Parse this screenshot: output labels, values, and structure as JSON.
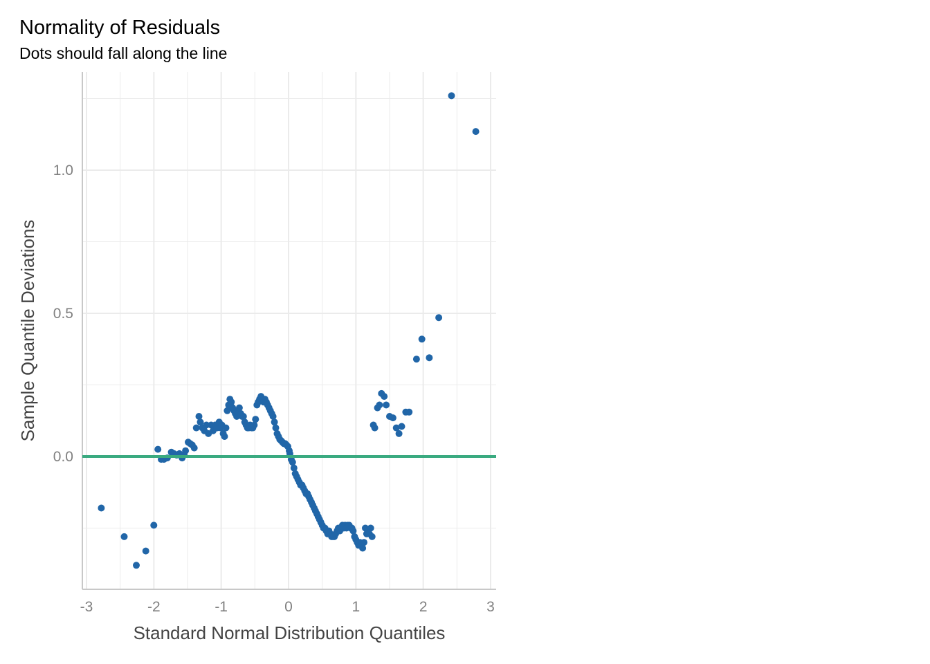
{
  "title": "Normality of Residuals",
  "subtitle": "Dots should fall along the line",
  "colors": {
    "point": "#2166a8",
    "reference_line": "#3aaa80",
    "grid": "#ebebeb",
    "axis": "#c8c8c8"
  },
  "chart_data": {
    "type": "scatter",
    "xlabel": "Standard Normal Distribution Quantiles",
    "ylabel": "Sample Quantile Deviations",
    "xlim": [
      -3,
      3
    ],
    "ylim": [
      -0.45,
      1.3
    ],
    "x_ticks": [
      -3,
      -2,
      -1,
      0,
      1,
      2,
      3
    ],
    "x_tick_labels": [
      "-3",
      "-2",
      "-1",
      "0",
      "1",
      "2",
      "3"
    ],
    "y_ticks": [
      0.0,
      0.5,
      1.0
    ],
    "y_tick_labels": [
      "0.0",
      "0.5",
      "1.0"
    ],
    "reference_line_y": 0,
    "grid": true,
    "points": [
      [
        -2.78,
        -0.18
      ],
      [
        -2.44,
        -0.28
      ],
      [
        -2.26,
        -0.38
      ],
      [
        -2.12,
        -0.33
      ],
      [
        -2.0,
        -0.24
      ],
      [
        -1.94,
        0.025
      ],
      [
        -1.89,
        -0.01
      ],
      [
        -1.85,
        -0.01
      ],
      [
        -1.8,
        -0.005
      ],
      [
        -1.74,
        0.015
      ],
      [
        -1.7,
        0.01
      ],
      [
        -1.66,
        0.005
      ],
      [
        -1.62,
        0.01
      ],
      [
        -1.58,
        -0.005
      ],
      [
        -1.55,
        0.005
      ],
      [
        -1.53,
        0.02
      ],
      [
        -1.49,
        0.05
      ],
      [
        -1.46,
        0.045
      ],
      [
        -1.43,
        0.04
      ],
      [
        -1.4,
        0.03
      ],
      [
        -1.37,
        0.1
      ],
      [
        -1.33,
        0.14
      ],
      [
        -1.31,
        0.12
      ],
      [
        -1.28,
        0.1
      ],
      [
        -1.25,
        0.09
      ],
      [
        -1.22,
        0.11
      ],
      [
        -1.19,
        0.08
      ],
      [
        -1.15,
        0.11
      ],
      [
        -1.12,
        0.09
      ],
      [
        -1.09,
        0.11
      ],
      [
        -1.06,
        0.1
      ],
      [
        -1.03,
        0.12
      ],
      [
        -1.01,
        0.1
      ],
      [
        -0.99,
        0.11
      ],
      [
        -0.97,
        0.08
      ],
      [
        -0.95,
        0.07
      ],
      [
        -0.93,
        0.1
      ],
      [
        -0.91,
        0.16
      ],
      [
        -0.89,
        0.18
      ],
      [
        -0.87,
        0.2
      ],
      [
        -0.85,
        0.19
      ],
      [
        -0.83,
        0.17
      ],
      [
        -0.81,
        0.16
      ],
      [
        -0.79,
        0.15
      ],
      [
        -0.77,
        0.14
      ],
      [
        -0.75,
        0.15
      ],
      [
        -0.73,
        0.17
      ],
      [
        -0.71,
        0.15
      ],
      [
        -0.69,
        0.14
      ],
      [
        -0.67,
        0.14
      ],
      [
        -0.65,
        0.12
      ],
      [
        -0.63,
        0.11
      ],
      [
        -0.61,
        0.1
      ],
      [
        -0.59,
        0.1
      ],
      [
        -0.57,
        0.11
      ],
      [
        -0.55,
        0.1
      ],
      [
        -0.53,
        0.1
      ],
      [
        -0.51,
        0.11
      ],
      [
        -0.49,
        0.13
      ],
      [
        -0.47,
        0.18
      ],
      [
        -0.45,
        0.19
      ],
      [
        -0.43,
        0.2
      ],
      [
        -0.41,
        0.21
      ],
      [
        -0.39,
        0.2
      ],
      [
        -0.37,
        0.19
      ],
      [
        -0.35,
        0.2
      ],
      [
        -0.33,
        0.19
      ],
      [
        -0.31,
        0.18
      ],
      [
        -0.29,
        0.17
      ],
      [
        -0.27,
        0.16
      ],
      [
        -0.25,
        0.15
      ],
      [
        -0.23,
        0.14
      ],
      [
        -0.21,
        0.12
      ],
      [
        -0.19,
        0.1
      ],
      [
        -0.17,
        0.08
      ],
      [
        -0.15,
        0.07
      ],
      [
        -0.13,
        0.06
      ],
      [
        -0.11,
        0.055
      ],
      [
        -0.09,
        0.05
      ],
      [
        -0.07,
        0.045
      ],
      [
        -0.05,
        0.045
      ],
      [
        -0.03,
        0.04
      ],
      [
        -0.01,
        0.035
      ],
      [
        0.01,
        0.02
      ],
      [
        0.02,
        0.01
      ],
      [
        0.04,
        -0.01
      ],
      [
        0.06,
        -0.02
      ],
      [
        0.08,
        -0.04
      ],
      [
        0.1,
        -0.06
      ],
      [
        0.12,
        -0.07
      ],
      [
        0.14,
        -0.08
      ],
      [
        0.16,
        -0.09
      ],
      [
        0.18,
        -0.1
      ],
      [
        0.2,
        -0.1
      ],
      [
        0.22,
        -0.11
      ],
      [
        0.24,
        -0.12
      ],
      [
        0.26,
        -0.13
      ],
      [
        0.28,
        -0.13
      ],
      [
        0.3,
        -0.14
      ],
      [
        0.32,
        -0.15
      ],
      [
        0.34,
        -0.16
      ],
      [
        0.36,
        -0.17
      ],
      [
        0.38,
        -0.18
      ],
      [
        0.4,
        -0.19
      ],
      [
        0.42,
        -0.2
      ],
      [
        0.44,
        -0.21
      ],
      [
        0.46,
        -0.22
      ],
      [
        0.48,
        -0.23
      ],
      [
        0.5,
        -0.24
      ],
      [
        0.52,
        -0.25
      ],
      [
        0.54,
        -0.25
      ],
      [
        0.56,
        -0.26
      ],
      [
        0.58,
        -0.27
      ],
      [
        0.6,
        -0.26
      ],
      [
        0.62,
        -0.27
      ],
      [
        0.64,
        -0.28
      ],
      [
        0.66,
        -0.28
      ],
      [
        0.68,
        -0.28
      ],
      [
        0.7,
        -0.27
      ],
      [
        0.72,
        -0.26
      ],
      [
        0.74,
        -0.25
      ],
      [
        0.76,
        -0.26
      ],
      [
        0.78,
        -0.25
      ],
      [
        0.8,
        -0.24
      ],
      [
        0.82,
        -0.25
      ],
      [
        0.84,
        -0.24
      ],
      [
        0.86,
        -0.25
      ],
      [
        0.88,
        -0.24
      ],
      [
        0.9,
        -0.24
      ],
      [
        0.92,
        -0.25
      ],
      [
        0.94,
        -0.25
      ],
      [
        0.96,
        -0.26
      ],
      [
        0.98,
        -0.28
      ],
      [
        1.0,
        -0.29
      ],
      [
        1.02,
        -0.3
      ],
      [
        1.04,
        -0.31
      ],
      [
        1.06,
        -0.3
      ],
      [
        1.08,
        -0.31
      ],
      [
        1.1,
        -0.32
      ],
      [
        1.12,
        -0.3
      ],
      [
        1.14,
        -0.25
      ],
      [
        1.16,
        -0.27
      ],
      [
        1.18,
        -0.26
      ],
      [
        1.2,
        -0.27
      ],
      [
        1.22,
        -0.25
      ],
      [
        1.24,
        -0.28
      ],
      [
        1.26,
        0.11
      ],
      [
        1.28,
        0.1
      ],
      [
        1.32,
        0.17
      ],
      [
        1.35,
        0.18
      ],
      [
        1.38,
        0.22
      ],
      [
        1.42,
        0.21
      ],
      [
        1.45,
        0.18
      ],
      [
        1.5,
        0.14
      ],
      [
        1.55,
        0.135
      ],
      [
        1.6,
        0.1
      ],
      [
        1.64,
        0.08
      ],
      [
        1.68,
        0.105
      ],
      [
        1.74,
        0.155
      ],
      [
        1.79,
        0.155
      ],
      [
        1.9,
        0.34
      ],
      [
        1.98,
        0.41
      ],
      [
        2.09,
        0.345
      ],
      [
        2.23,
        0.485
      ],
      [
        2.42,
        1.26
      ],
      [
        2.78,
        1.135
      ]
    ]
  }
}
